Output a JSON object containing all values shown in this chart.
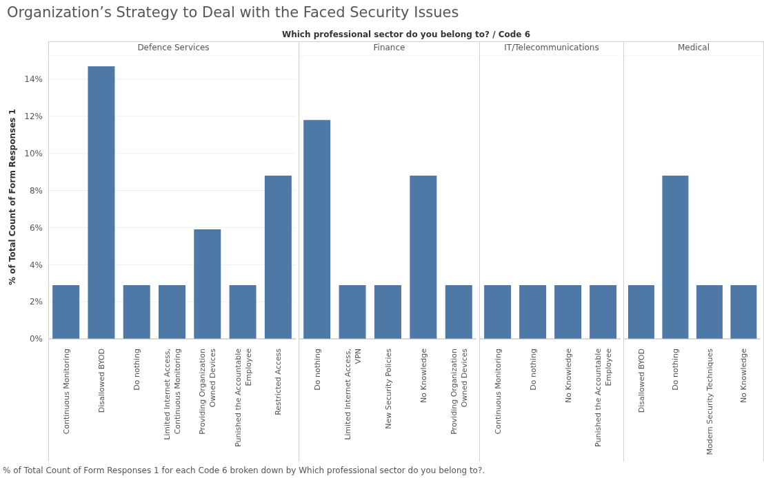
{
  "chart_data": [
    {
      "type": "bar",
      "title": "Defence Services",
      "ylabel": "% of Total Count of Form Responses 1",
      "annotations": [
        "Organization’s Strategy to Deal with the Faced Security Issues",
        "Which professional sector do you belong to?  /  Code 6",
        "% of Total Count of Form Responses 1 for each Code 6 broken down by Which professional sector do you belong to?."
      ],
      "categories": [
        "Continuous Monitoring",
        "Disallowed BYOD",
        "Do nothing",
        "Limited Internet Access, Continuous Monitoring",
        "Providing Organization Owned Devices",
        "Punished the Accountable Employee",
        "Restricted Access"
      ],
      "values": [
        2.9,
        14.7,
        2.9,
        2.9,
        5.9,
        2.9,
        8.8
      ],
      "color": "#4e79a7",
      "ylim": [
        0,
        15.3
      ],
      "yticks": [
        {
          "value": 0,
          "label": "0%"
        },
        {
          "value": 2,
          "label": "2%"
        },
        {
          "value": 4,
          "label": "4%"
        },
        {
          "value": 6,
          "label": "6%"
        },
        {
          "value": 8,
          "label": "8%"
        },
        {
          "value": 10,
          "label": "10%"
        },
        {
          "value": 12,
          "label": "12%"
        },
        {
          "value": 14,
          "label": "14%"
        }
      ],
      "grid": "y"
    },
    {
      "type": "bar",
      "title": "Finance",
      "tick_labels": "x",
      "categories": [
        "Do nothing",
        "Limited Internet Access, VPN",
        "New Security Policies",
        "No Knowledge",
        "Providing Organization Owned Devices"
      ],
      "values": [
        11.8,
        2.9,
        2.9,
        8.8,
        2.9
      ],
      "color": "#4e79a7",
      "ylim": [
        0,
        15.3
      ],
      "yticks": [
        {
          "value": 0,
          "label": null
        },
        {
          "value": 2,
          "label": null
        },
        {
          "value": 4,
          "label": null
        },
        {
          "value": 6,
          "label": null
        },
        {
          "value": 8,
          "label": null
        },
        {
          "value": 10,
          "label": null
        },
        {
          "value": 12,
          "label": null
        },
        {
          "value": 14,
          "label": null
        }
      ],
      "grid": "y"
    },
    {
      "type": "bar",
      "title": "IT/Telecommunications",
      "tick_labels": "x",
      "categories": [
        "Continuous Monitoring",
        "Do nothing",
        "No Knowledge",
        "Punished the Accountable Employee"
      ],
      "values": [
        2.9,
        2.9,
        2.9,
        2.9
      ],
      "color": "#4e79a7",
      "ylim": [
        0,
        15.3
      ],
      "yticks": [
        {
          "value": 0,
          "label": null
        },
        {
          "value": 2,
          "label": null
        },
        {
          "value": 4,
          "label": null
        },
        {
          "value": 6,
          "label": null
        },
        {
          "value": 8,
          "label": null
        },
        {
          "value": 10,
          "label": null
        },
        {
          "value": 12,
          "label": null
        },
        {
          "value": 14,
          "label": null
        }
      ],
      "grid": "y"
    },
    {
      "type": "bar",
      "title": "Medical",
      "tick_labels": "x",
      "categories": [
        "Disallowed BYOD",
        "Do nothing",
        "Modern Security Techniques",
        "No Knowledge"
      ],
      "values": [
        2.9,
        8.8,
        2.9,
        2.9
      ],
      "color": "#4e79a7",
      "ylim": [
        0,
        15.3
      ],
      "yticks": [
        {
          "value": 0,
          "label": null
        },
        {
          "value": 2,
          "label": null
        },
        {
          "value": 4,
          "label": null
        },
        {
          "value": 6,
          "label": null
        },
        {
          "value": 8,
          "label": null
        },
        {
          "value": 10,
          "label": null
        },
        {
          "value": 12,
          "label": null
        },
        {
          "value": 14,
          "label": null
        }
      ],
      "grid": "y"
    }
  ]
}
